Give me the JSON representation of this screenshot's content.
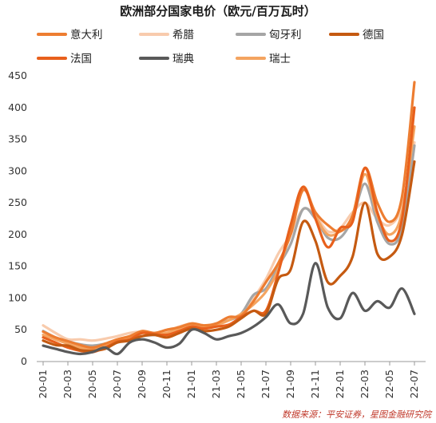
{
  "chart_data": {
    "type": "line",
    "title": "欧洲部分国家电价（欧元/百万瓦时）",
    "source": "数据来源：平安证券，星图金融研究院",
    "ylim": [
      0,
      450
    ],
    "yticks": [
      0,
      50,
      100,
      150,
      200,
      250,
      300,
      350,
      400,
      450
    ],
    "xlim": [
      "20-01",
      "22-07"
    ],
    "xticks": [
      "20-01",
      "20-03",
      "20-05",
      "20-07",
      "20-09",
      "20-11",
      "21-01",
      "21-03",
      "21-05",
      "21-07",
      "21-09",
      "21-11",
      "22-01",
      "22-03",
      "22-05",
      "22-07"
    ],
    "grid": false,
    "legend_position": "top",
    "series": [
      {
        "name": "意大利",
        "color": "#ed7d31",
        "width": 3.2,
        "points": [
          [
            0,
            47
          ],
          [
            1,
            38
          ],
          [
            2,
            32
          ],
          [
            3,
            26
          ],
          [
            4,
            22
          ],
          [
            5,
            28
          ],
          [
            6,
            35
          ],
          [
            7,
            40
          ],
          [
            8,
            48
          ],
          [
            9,
            45
          ],
          [
            10,
            50
          ],
          [
            11,
            54
          ],
          [
            12,
            60
          ],
          [
            13,
            57
          ],
          [
            14,
            60
          ],
          [
            15,
            70
          ],
          [
            16,
            72
          ],
          [
            17,
            95
          ],
          [
            18,
            125
          ],
          [
            19,
            155
          ],
          [
            20,
            200
          ],
          [
            21,
            270
          ],
          [
            22,
            235
          ],
          [
            23,
            215
          ],
          [
            24,
            205
          ],
          [
            25,
            230
          ],
          [
            26,
            305
          ],
          [
            27,
            250
          ],
          [
            28,
            220
          ],
          [
            29,
            260
          ],
          [
            30,
            440
          ]
        ]
      },
      {
        "name": "希腊",
        "color": "#f8cbad",
        "width": 3.2,
        "points": [
          [
            0,
            57
          ],
          [
            1,
            45
          ],
          [
            2,
            35
          ],
          [
            3,
            35
          ],
          [
            4,
            33
          ],
          [
            5,
            36
          ],
          [
            6,
            40
          ],
          [
            7,
            45
          ],
          [
            8,
            47
          ],
          [
            9,
            45
          ],
          [
            10,
            48
          ],
          [
            11,
            55
          ],
          [
            12,
            60
          ],
          [
            13,
            57
          ],
          [
            14,
            57
          ],
          [
            15,
            65
          ],
          [
            16,
            75
          ],
          [
            17,
            100
          ],
          [
            18,
            130
          ],
          [
            19,
            170
          ],
          [
            20,
            200
          ],
          [
            21,
            240
          ],
          [
            22,
            230
          ],
          [
            23,
            205
          ],
          [
            24,
            210
          ],
          [
            25,
            235
          ],
          [
            26,
            250
          ],
          [
            27,
            225
          ],
          [
            28,
            215
          ],
          [
            29,
            245
          ],
          [
            30,
            345
          ]
        ]
      },
      {
        "name": "匈牙利",
        "color": "#a5a5a5",
        "width": 3.2,
        "points": [
          [
            0,
            48
          ],
          [
            1,
            38
          ],
          [
            2,
            32
          ],
          [
            3,
            27
          ],
          [
            4,
            25
          ],
          [
            5,
            28
          ],
          [
            6,
            33
          ],
          [
            7,
            36
          ],
          [
            8,
            40
          ],
          [
            9,
            42
          ],
          [
            10,
            42
          ],
          [
            11,
            50
          ],
          [
            12,
            55
          ],
          [
            13,
            55
          ],
          [
            14,
            60
          ],
          [
            15,
            65
          ],
          [
            16,
            75
          ],
          [
            17,
            105
          ],
          [
            18,
            115
          ],
          [
            19,
            150
          ],
          [
            20,
            185
          ],
          [
            21,
            240
          ],
          [
            22,
            225
          ],
          [
            23,
            195
          ],
          [
            24,
            195
          ],
          [
            25,
            225
          ],
          [
            26,
            280
          ],
          [
            27,
            220
          ],
          [
            28,
            185
          ],
          [
            29,
            210
          ],
          [
            30,
            340
          ]
        ]
      },
      {
        "name": "德国",
        "color": "#c55a11",
        "width": 3.2,
        "points": [
          [
            0,
            33
          ],
          [
            1,
            26
          ],
          [
            2,
            25
          ],
          [
            3,
            18
          ],
          [
            4,
            17
          ],
          [
            5,
            20
          ],
          [
            6,
            30
          ],
          [
            7,
            33
          ],
          [
            8,
            40
          ],
          [
            9,
            42
          ],
          [
            10,
            38
          ],
          [
            11,
            45
          ],
          [
            12,
            52
          ],
          [
            13,
            48
          ],
          [
            14,
            50
          ],
          [
            15,
            55
          ],
          [
            16,
            68
          ],
          [
            17,
            80
          ],
          [
            18,
            75
          ],
          [
            19,
            130
          ],
          [
            20,
            145
          ],
          [
            21,
            220
          ],
          [
            22,
            190
          ],
          [
            23,
            125
          ],
          [
            24,
            135
          ],
          [
            25,
            165
          ],
          [
            26,
            250
          ],
          [
            27,
            170
          ],
          [
            28,
            165
          ],
          [
            29,
            200
          ],
          [
            30,
            315
          ]
        ]
      },
      {
        "name": "法国",
        "color": "#e8601c",
        "width": 3.2,
        "points": [
          [
            0,
            38
          ],
          [
            1,
            30
          ],
          [
            2,
            22
          ],
          [
            3,
            17
          ],
          [
            4,
            15
          ],
          [
            5,
            22
          ],
          [
            6,
            31
          ],
          [
            7,
            35
          ],
          [
            8,
            45
          ],
          [
            9,
            43
          ],
          [
            10,
            42
          ],
          [
            11,
            48
          ],
          [
            12,
            55
          ],
          [
            13,
            52
          ],
          [
            14,
            55
          ],
          [
            15,
            58
          ],
          [
            16,
            70
          ],
          [
            17,
            80
          ],
          [
            18,
            80
          ],
          [
            19,
            140
          ],
          [
            20,
            215
          ],
          [
            21,
            275
          ],
          [
            22,
            225
          ],
          [
            23,
            180
          ],
          [
            24,
            210
          ],
          [
            25,
            220
          ],
          [
            26,
            305
          ],
          [
            27,
            235
          ],
          [
            28,
            190
          ],
          [
            29,
            225
          ],
          [
            30,
            400
          ]
        ]
      },
      {
        "name": "瑞典",
        "color": "#595959",
        "width": 3.2,
        "points": [
          [
            0,
            25
          ],
          [
            1,
            20
          ],
          [
            2,
            15
          ],
          [
            3,
            12
          ],
          [
            4,
            15
          ],
          [
            5,
            22
          ],
          [
            6,
            12
          ],
          [
            7,
            30
          ],
          [
            8,
            35
          ],
          [
            9,
            30
          ],
          [
            10,
            22
          ],
          [
            11,
            28
          ],
          [
            12,
            50
          ],
          [
            13,
            45
          ],
          [
            14,
            35
          ],
          [
            15,
            40
          ],
          [
            16,
            45
          ],
          [
            17,
            55
          ],
          [
            18,
            70
          ],
          [
            19,
            90
          ],
          [
            20,
            60
          ],
          [
            21,
            75
          ],
          [
            22,
            155
          ],
          [
            23,
            85
          ],
          [
            24,
            68
          ],
          [
            25,
            108
          ],
          [
            26,
            80
          ],
          [
            27,
            95
          ],
          [
            28,
            85
          ],
          [
            29,
            115
          ],
          [
            30,
            75
          ]
        ]
      },
      {
        "name": "瑞士",
        "color": "#f4a460",
        "width": 3.2,
        "points": [
          [
            0,
            42
          ],
          [
            1,
            35
          ],
          [
            2,
            28
          ],
          [
            3,
            22
          ],
          [
            4,
            20
          ],
          [
            5,
            25
          ],
          [
            6,
            33
          ],
          [
            7,
            38
          ],
          [
            8,
            45
          ],
          [
            9,
            43
          ],
          [
            10,
            45
          ],
          [
            11,
            52
          ],
          [
            12,
            58
          ],
          [
            13,
            55
          ],
          [
            14,
            58
          ],
          [
            15,
            65
          ],
          [
            16,
            75
          ],
          [
            17,
            90
          ],
          [
            18,
            110
          ],
          [
            19,
            145
          ],
          [
            20,
            205
          ],
          [
            21,
            275
          ],
          [
            22,
            230
          ],
          [
            23,
            200
          ],
          [
            24,
            205
          ],
          [
            25,
            225
          ],
          [
            26,
            295
          ],
          [
            27,
            230
          ],
          [
            28,
            200
          ],
          [
            29,
            235
          ],
          [
            30,
            370
          ]
        ]
      }
    ]
  }
}
